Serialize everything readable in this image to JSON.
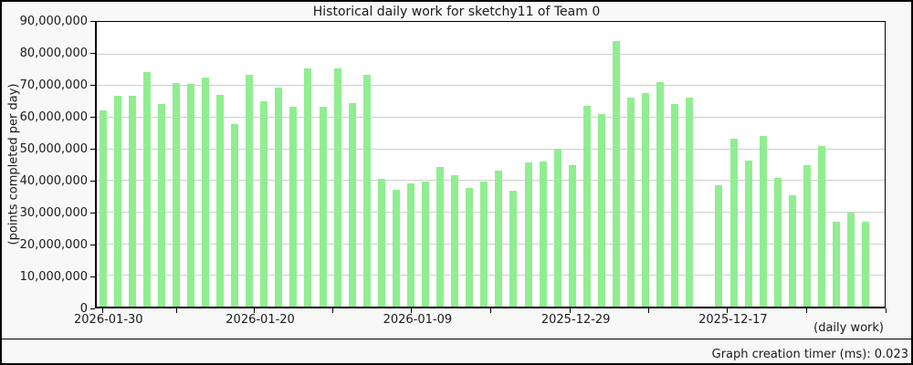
{
  "title": "Historical daily work for sketchy11 of Team 0",
  "footer": {
    "timer_label": "Graph creation timer (ms): 0.023"
  },
  "chart_data": {
    "type": "bar",
    "title": "Historical daily work for sketchy11 of Team 0",
    "ylabel": "(points completed per day)",
    "corner_label": "(daily work)",
    "ylim": [
      0,
      90000000
    ],
    "grid": "horizontal-only",
    "bar_color": "#90EE90",
    "gridline_color": "#cfcfcf",
    "background_color": "#f8f8f8",
    "plot_background": "#ffffff",
    "y_ticks": [
      "90,000,000",
      "80,000,000",
      "70,000,000",
      "60,000,000",
      "50,000,000",
      "40,000,000",
      "30,000,000",
      "20,000,000",
      "10,000,000",
      "0"
    ],
    "x_axis_note": "time runs newest (2026-01-30) at left to oldest at right, one bar per day",
    "x_ticks": [
      {
        "f": 0.009,
        "label": "2026-01-30"
      },
      {
        "f": 0.103,
        "label": ""
      },
      {
        "f": 0.201,
        "label": "2026-01-20"
      },
      {
        "f": 0.3,
        "label": ""
      },
      {
        "f": 0.4,
        "label": "2026-01-09"
      },
      {
        "f": 0.5,
        "label": ""
      },
      {
        "f": 0.6,
        "label": "2025-12-29"
      },
      {
        "f": 0.7,
        "label": ""
      },
      {
        "f": 0.799,
        "label": "2025-12-17"
      },
      {
        "f": 0.9,
        "label": ""
      },
      {
        "f": 1.0,
        "label": ""
      }
    ],
    "values": [
      62000000,
      66600000,
      66600000,
      74000000,
      64000000,
      70800000,
      70500000,
      72400000,
      66900000,
      57800000,
      73200000,
      65000000,
      69300000,
      63200000,
      75200000,
      63200000,
      75200000,
      64300000,
      73400000,
      40300000,
      36900000,
      38900000,
      39600000,
      44200000,
      41500000,
      37400000,
      39500000,
      43100000,
      36600000,
      45700000,
      46000000,
      49700000,
      44600000,
      63400000,
      60900000,
      84000000,
      66200000,
      67500000,
      71100000,
      64000000,
      66000000,
      0,
      38300000,
      53000000,
      46300000,
      54000000,
      40600000,
      35100000,
      44600000,
      50700000,
      26900000,
      29700000,
      26900000
    ]
  }
}
